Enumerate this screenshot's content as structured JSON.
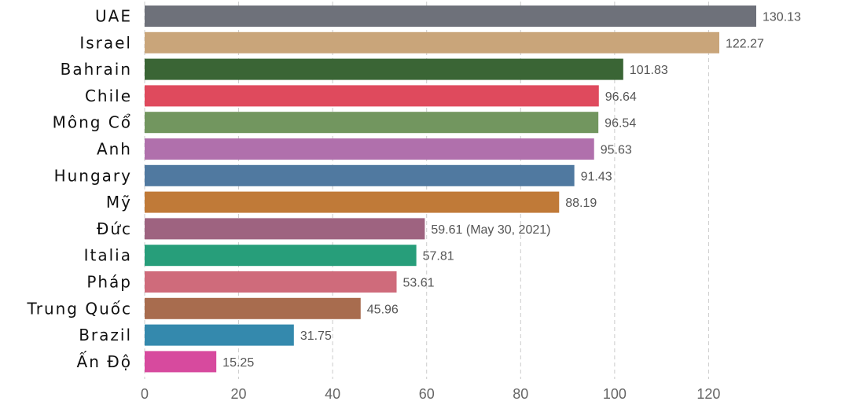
{
  "chart_data": {
    "type": "bar",
    "orientation": "horizontal",
    "title": "",
    "xlabel": "",
    "ylabel": "",
    "xlim": [
      0,
      130.13
    ],
    "xticks": [
      "0",
      "20",
      "40",
      "60",
      "80",
      "100",
      "120"
    ],
    "grid": true,
    "categories": [
      "UAE",
      "Israel",
      "Bahrain",
      "Chile",
      "Mông Cổ",
      "Anh",
      "Hungary",
      "Mỹ",
      "Đức",
      "Italia",
      "Pháp",
      "Trung Quốc",
      "Brazil",
      "Ấn Độ"
    ],
    "values": [
      130.13,
      122.27,
      101.83,
      96.64,
      96.54,
      95.63,
      91.43,
      88.19,
      59.61,
      57.81,
      53.61,
      45.96,
      31.75,
      15.25
    ],
    "value_labels": [
      "130.13",
      "122.27",
      "101.83",
      "96.64",
      "96.54",
      "95.63",
      "91.43",
      "88.19",
      "59.61 (May 30, 2021)",
      "57.81",
      "53.61",
      "45.96",
      "31.75",
      "15.25"
    ],
    "colors": [
      "#6e717a",
      "#c9a57a",
      "#3a6535",
      "#df4a5d",
      "#72965f",
      "#b070ac",
      "#5079a0",
      "#c07a38",
      "#9e6380",
      "#279e7a",
      "#cf6b7b",
      "#a86c4e",
      "#3489ad",
      "#d74a9e"
    ]
  }
}
